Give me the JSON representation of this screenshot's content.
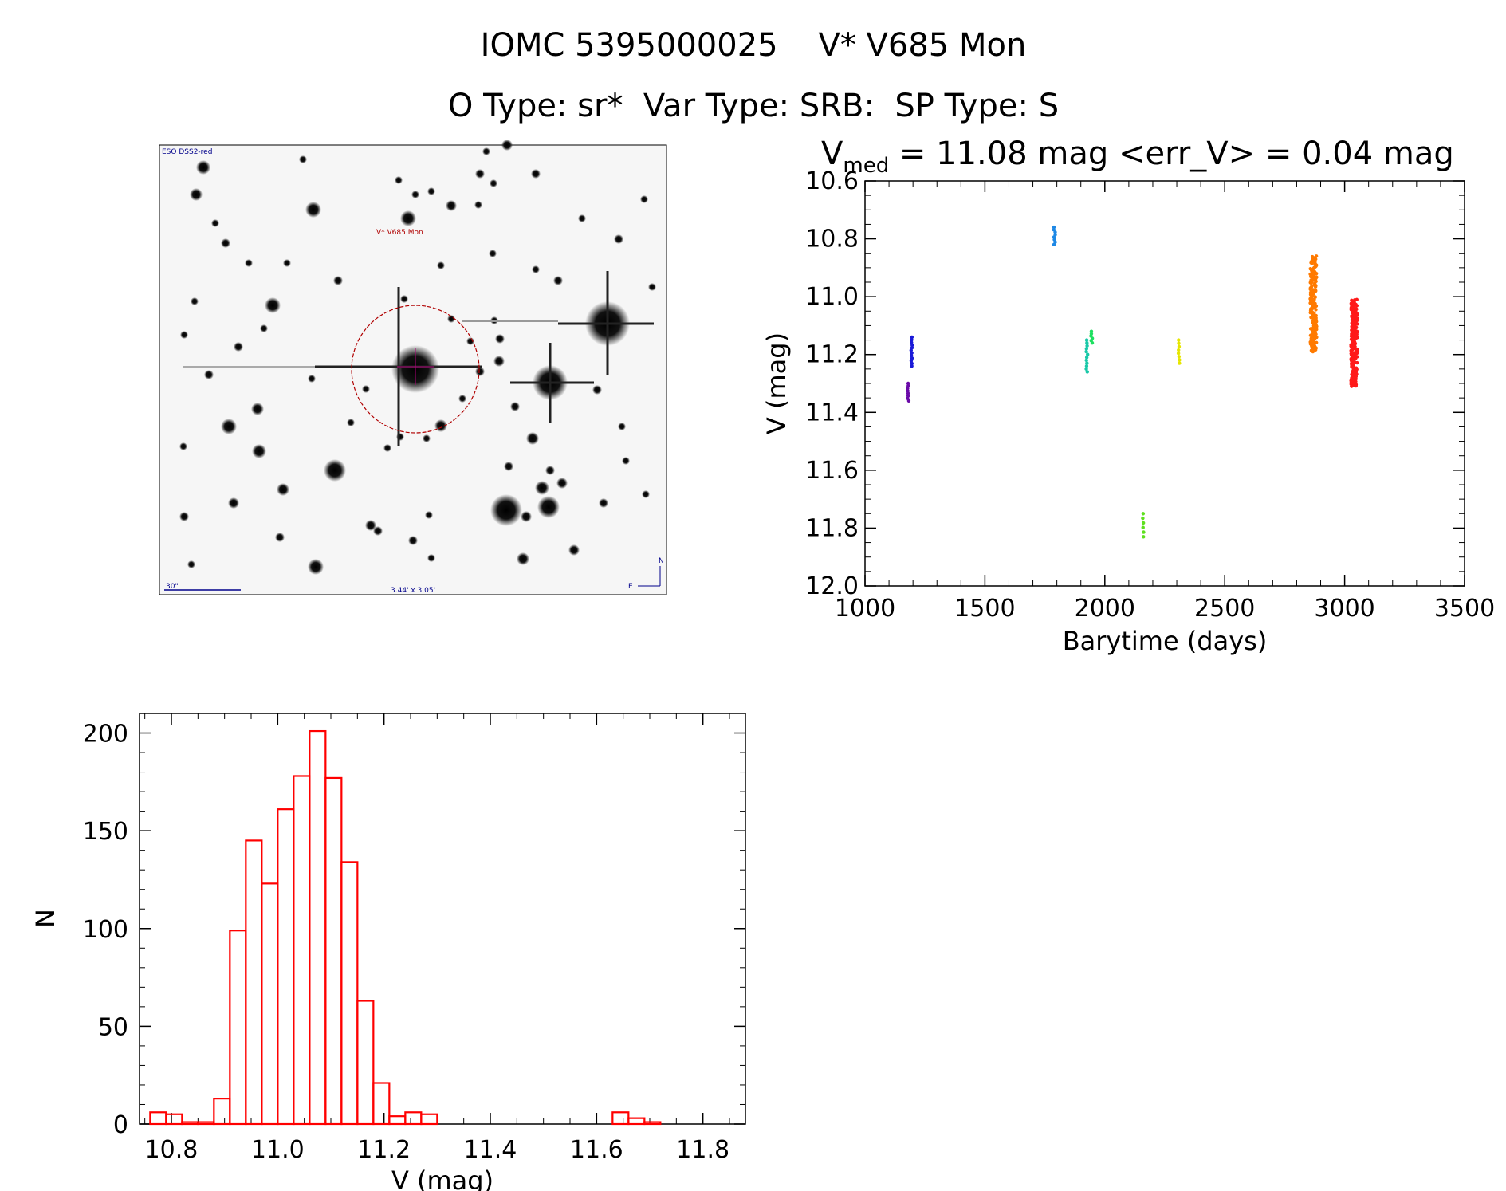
{
  "header": {
    "title": "IOMC 5395000025    V* V685 Mon",
    "subtitle": "O Type: sr*  Var Type: SRB:  SP Type: S"
  },
  "finder": {
    "survey_label": "ESO DSS2-red",
    "target_label": "V* V685 Mon",
    "scale_label": "30\"",
    "fov_label": "3.44' x 3.05'",
    "north": "N",
    "east": "E"
  },
  "lightcurve_stats": {
    "vmed_symbol": "V",
    "vmed_sub": "med",
    "text": " = 11.08 mag <err_V> = 0.04 mag"
  },
  "chart_data": [
    {
      "type": "scatter",
      "xlabel": "Barytime (days)",
      "ylabel": "V (mag)",
      "xlim": [
        1000,
        3500
      ],
      "ylim": [
        12.0,
        10.6
      ],
      "y_inverted": true,
      "xticks": [
        1000,
        1500,
        2000,
        2500,
        3000,
        3500
      ],
      "yticks": [
        10.6,
        10.8,
        11.0,
        11.2,
        11.4,
        11.6,
        11.8,
        12.0
      ],
      "ytick_labels": [
        "10.6",
        "10.8",
        "11.0",
        "11.2",
        "11.4",
        "11.6",
        "11.8",
        "12.0"
      ],
      "groups": [
        {
          "x": 1180,
          "vmin": 11.3,
          "vmax": 11.36,
          "n": 8,
          "color": "#6a0aa8"
        },
        {
          "x": 1195,
          "vmin": 11.14,
          "vmax": 11.24,
          "n": 12,
          "color": "#1a1ad8"
        },
        {
          "x": 1790,
          "vmin": 10.76,
          "vmax": 10.82,
          "n": 8,
          "color": "#1e88e5"
        },
        {
          "x": 1925,
          "vmin": 11.15,
          "vmax": 11.26,
          "n": 12,
          "color": "#19c8a8"
        },
        {
          "x": 1945,
          "vmin": 11.12,
          "vmax": 11.16,
          "n": 6,
          "color": "#1ee060"
        },
        {
          "x": 2160,
          "vmin": 11.75,
          "vmax": 11.83,
          "n": 6,
          "color": "#5ee01e"
        },
        {
          "x": 2310,
          "vmin": 11.15,
          "vmax": 11.23,
          "n": 8,
          "color": "#e6e600"
        },
        {
          "x": 2870,
          "vmin": 10.86,
          "vmax": 11.19,
          "n": 160,
          "color": "#ff7a00"
        },
        {
          "x": 3040,
          "vmin": 11.01,
          "vmax": 11.31,
          "n": 200,
          "color": "#ff1a1a"
        }
      ]
    },
    {
      "type": "bar",
      "subtype": "histogram",
      "xlabel": "V (mag)",
      "ylabel": "N",
      "xlim": [
        10.74,
        11.88
      ],
      "ylim": [
        0,
        210
      ],
      "xticks": [
        10.8,
        11.0,
        11.2,
        11.4,
        11.6,
        11.8
      ],
      "xtick_labels": [
        "10.8",
        "11.0",
        "11.2",
        "11.4",
        "11.6",
        "11.8"
      ],
      "yticks": [
        0,
        50,
        100,
        150,
        200
      ],
      "ytick_labels": [
        "0",
        "50",
        "100",
        "150",
        "200"
      ],
      "bin_start": 10.76,
      "bin_width": 0.03,
      "counts": [
        6,
        5,
        1,
        1,
        13,
        99,
        145,
        123,
        161,
        178,
        201,
        177,
        134,
        63,
        21,
        4,
        6,
        5,
        0,
        0,
        0,
        0,
        0,
        0,
        0,
        0,
        0,
        0,
        0,
        6,
        3,
        1
      ],
      "color": "#ff0000"
    }
  ]
}
